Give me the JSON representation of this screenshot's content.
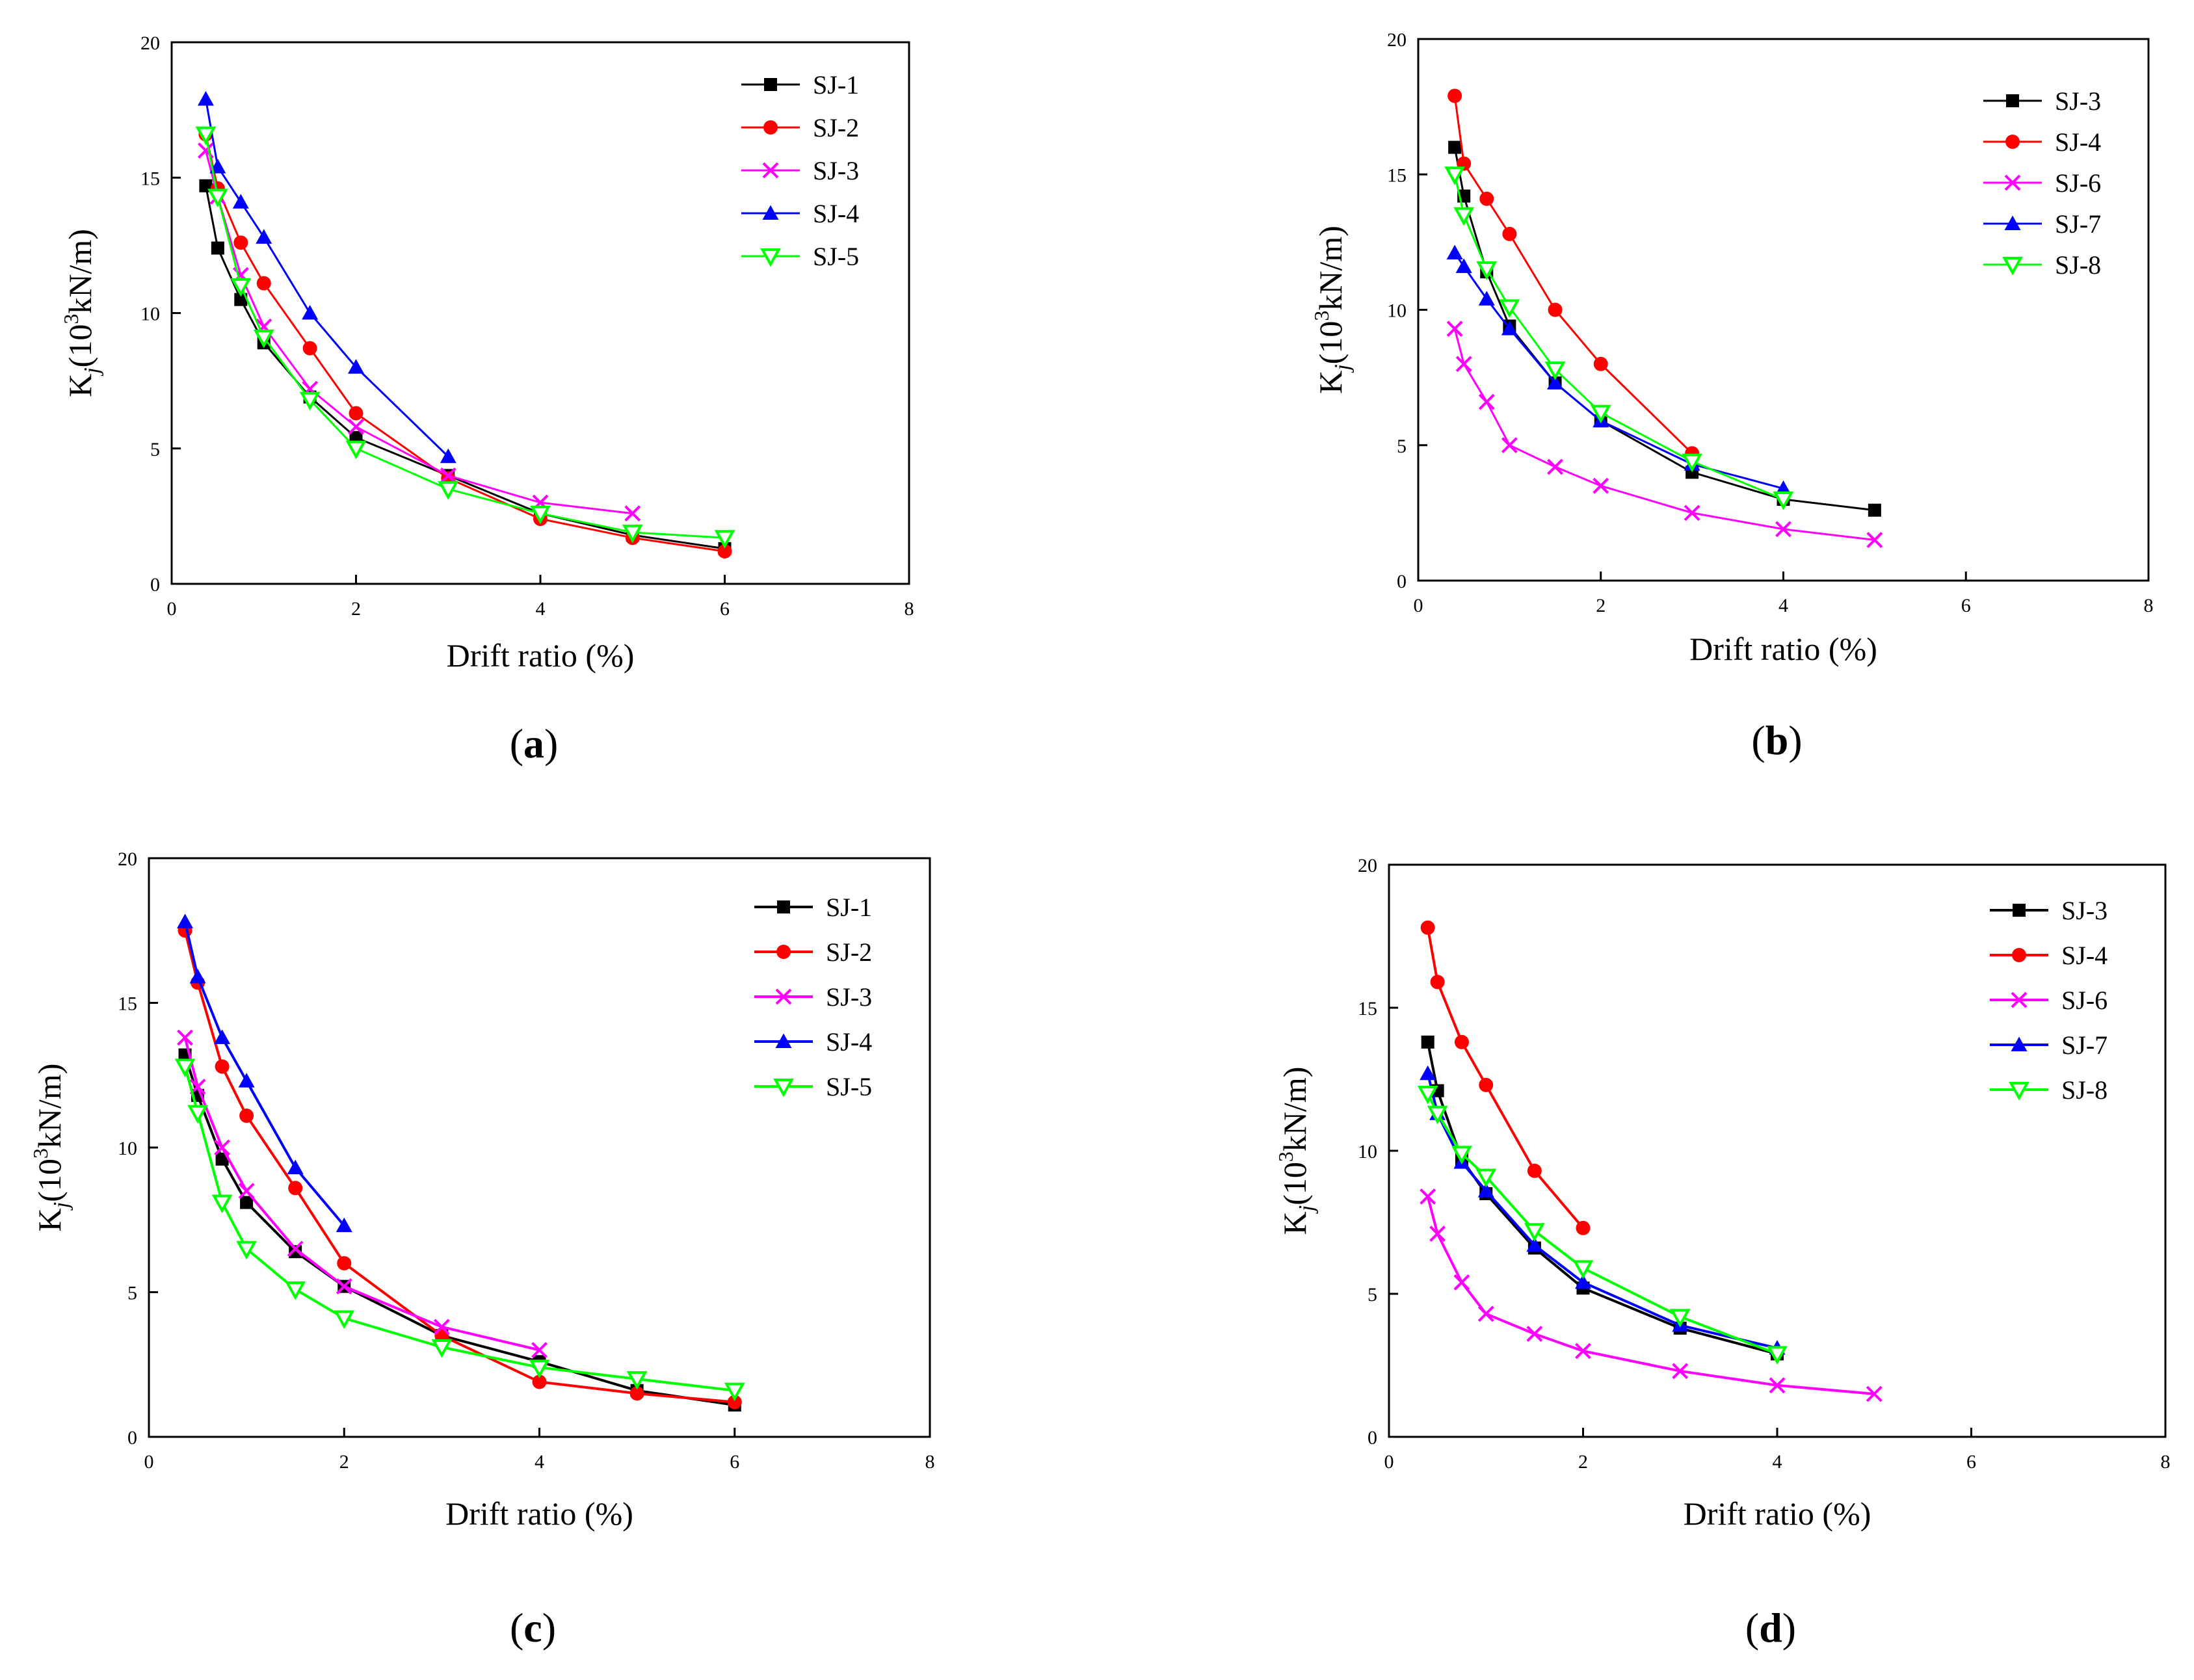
{
  "figure": {
    "title": ""
  },
  "chart_data": [
    {
      "type": "line",
      "panel_label": "(a)",
      "panel_letter": "a",
      "xlabel": "Drift ratio (%)",
      "ylabel_main": "K",
      "ylabel_sub": "j",
      "ylabel_pre": "(10",
      "ylabel_sup": "3",
      "ylabel_post": "kN/m)",
      "xlim": [
        0,
        8
      ],
      "ylim": [
        0,
        20
      ],
      "xticks": [
        0,
        2,
        4,
        6,
        8
      ],
      "yticks": [
        0,
        5,
        10,
        15,
        20
      ],
      "grid": false,
      "legend_position": "top-right",
      "series": [
        {
          "name": "SJ-1",
          "color": "#000000",
          "marker": "square",
          "x": [
            0.37,
            0.5,
            0.75,
            1,
            1.5,
            2,
            3,
            4,
            5,
            6
          ],
          "y": [
            14.7,
            12.4,
            10.5,
            8.9,
            6.9,
            5.4,
            4.0,
            2.6,
            1.8,
            1.3
          ]
        },
        {
          "name": "SJ-2",
          "color": "#ff0000",
          "marker": "circle",
          "x": [
            0.37,
            0.5,
            0.75,
            1,
            1.5,
            2,
            3,
            4,
            5,
            6
          ],
          "y": [
            16.6,
            14.6,
            12.6,
            11.1,
            8.7,
            6.3,
            3.9,
            2.4,
            1.7,
            1.2
          ]
        },
        {
          "name": "SJ-3",
          "color": "#ff00ff",
          "marker": "x",
          "x": [
            0.37,
            0.5,
            0.75,
            1,
            1.5,
            2,
            3,
            4,
            5
          ],
          "y": [
            16.0,
            14.3,
            11.4,
            9.5,
            7.2,
            5.8,
            4.0,
            3.0,
            2.6
          ]
        },
        {
          "name": "SJ-4",
          "color": "#0000ff",
          "marker": "triangle-up",
          "x": [
            0.37,
            0.5,
            0.75,
            1,
            1.5,
            2,
            3
          ],
          "y": [
            17.9,
            15.4,
            14.1,
            12.8,
            10.0,
            8.0,
            4.7
          ]
        },
        {
          "name": "SJ-5",
          "color": "#00ff00",
          "marker": "triangle-down",
          "x": [
            0.37,
            0.5,
            0.75,
            1,
            1.5,
            2,
            3,
            4,
            5,
            6
          ],
          "y": [
            16.6,
            14.3,
            11.0,
            9.1,
            6.8,
            5.0,
            3.5,
            2.6,
            1.9,
            1.7
          ]
        }
      ]
    },
    {
      "type": "line",
      "panel_label": "(b)",
      "panel_letter": "b",
      "xlabel": "Drift ratio (%)",
      "ylabel_main": "K",
      "ylabel_sub": "j",
      "ylabel_pre": "(10",
      "ylabel_sup": "3",
      "ylabel_post": "kN/m)",
      "xlim": [
        0,
        8
      ],
      "ylim": [
        0,
        20
      ],
      "xticks": [
        0,
        2,
        4,
        6,
        8
      ],
      "yticks": [
        0,
        5,
        10,
        15,
        20
      ],
      "grid": false,
      "legend_position": "top-right",
      "series": [
        {
          "name": "SJ-3",
          "color": "#000000",
          "marker": "square",
          "x": [
            0.4,
            0.5,
            0.75,
            1,
            1.5,
            2,
            3,
            4,
            5
          ],
          "y": [
            16.0,
            14.2,
            11.4,
            9.4,
            7.3,
            5.9,
            4.0,
            3.0,
            2.6
          ]
        },
        {
          "name": "SJ-4",
          "color": "#ff0000",
          "marker": "circle",
          "x": [
            0.4,
            0.5,
            0.75,
            1,
            1.5,
            2,
            3
          ],
          "y": [
            17.9,
            15.4,
            14.1,
            12.8,
            10.0,
            8.0,
            4.7
          ]
        },
        {
          "name": "SJ-6",
          "color": "#ff00ff",
          "marker": "x",
          "x": [
            0.4,
            0.5,
            0.75,
            1,
            1.5,
            2,
            3,
            4,
            5
          ],
          "y": [
            9.3,
            8.0,
            6.6,
            5.0,
            4.2,
            3.5,
            2.5,
            1.9,
            1.5
          ]
        },
        {
          "name": "SJ-7",
          "color": "#0000ff",
          "marker": "triangle-up",
          "x": [
            0.4,
            0.5,
            0.75,
            1,
            1.5,
            2,
            3,
            4
          ],
          "y": [
            12.1,
            11.6,
            10.4,
            9.3,
            7.3,
            5.9,
            4.3,
            3.4
          ]
        },
        {
          "name": "SJ-8",
          "color": "#00ff00",
          "marker": "triangle-down",
          "x": [
            0.4,
            0.5,
            0.75,
            1,
            1.5,
            2,
            3,
            4
          ],
          "y": [
            15.0,
            13.5,
            11.5,
            10.1,
            7.8,
            6.2,
            4.4,
            3.0
          ]
        }
      ]
    },
    {
      "type": "line",
      "panel_label": "(c)",
      "panel_letter": "c",
      "xlabel": "Drift ratio (%)",
      "ylabel_main": "K",
      "ylabel_sub": "j",
      "ylabel_pre": "(10",
      "ylabel_sup": "3",
      "ylabel_post": "kN/m)",
      "xlim": [
        0,
        8
      ],
      "ylim": [
        0,
        20
      ],
      "xticks": [
        0,
        2,
        4,
        6,
        8
      ],
      "yticks": [
        0,
        5,
        10,
        15,
        20
      ],
      "grid": false,
      "legend_position": "top-right",
      "series": [
        {
          "name": "SJ-1",
          "color": "#000000",
          "marker": "square",
          "x": [
            0.37,
            0.5,
            0.75,
            1,
            1.5,
            2,
            3,
            4,
            5,
            6
          ],
          "y": [
            13.2,
            11.8,
            9.6,
            8.1,
            6.4,
            5.2,
            3.5,
            2.6,
            1.6,
            1.1
          ]
        },
        {
          "name": "SJ-2",
          "color": "#ff0000",
          "marker": "circle",
          "x": [
            0.37,
            0.5,
            0.75,
            1,
            1.5,
            2,
            3,
            4,
            5,
            6
          ],
          "y": [
            17.5,
            15.7,
            12.8,
            11.1,
            8.6,
            6.0,
            3.5,
            1.9,
            1.5,
            1.2
          ]
        },
        {
          "name": "SJ-3",
          "color": "#ff00ff",
          "marker": "x",
          "x": [
            0.37,
            0.5,
            0.75,
            1,
            1.5,
            2,
            3,
            4
          ],
          "y": [
            13.8,
            12.1,
            10.0,
            8.5,
            6.5,
            5.2,
            3.8,
            3.0
          ]
        },
        {
          "name": "SJ-4",
          "color": "#0000ff",
          "marker": "triangle-up",
          "x": [
            0.37,
            0.5,
            0.75,
            1,
            1.5,
            2
          ],
          "y": [
            17.8,
            15.9,
            13.8,
            12.3,
            9.3,
            7.3
          ]
        },
        {
          "name": "SJ-5",
          "color": "#00ff00",
          "marker": "triangle-down",
          "x": [
            0.37,
            0.5,
            0.75,
            1,
            1.5,
            2,
            3,
            4,
            5,
            6
          ],
          "y": [
            12.8,
            11.2,
            8.1,
            6.5,
            5.1,
            4.1,
            3.1,
            2.4,
            2.0,
            1.6
          ]
        }
      ]
    },
    {
      "type": "line",
      "panel_label": "(d)",
      "panel_letter": "d",
      "xlabel": "Drift ratio (%)",
      "ylabel_main": "K",
      "ylabel_sub": "j",
      "ylabel_pre": "(10",
      "ylabel_sup": "3",
      "ylabel_post": "kN/m)",
      "xlim": [
        0,
        8
      ],
      "ylim": [
        0,
        20
      ],
      "xticks": [
        0,
        2,
        4,
        6,
        8
      ],
      "yticks": [
        0,
        5,
        10,
        15,
        20
      ],
      "grid": false,
      "legend_position": "top-right",
      "series": [
        {
          "name": "SJ-3",
          "color": "#000000",
          "marker": "square",
          "x": [
            0.4,
            0.5,
            0.75,
            1,
            1.5,
            2,
            3,
            4
          ],
          "y": [
            13.8,
            12.1,
            9.7,
            8.5,
            6.6,
            5.2,
            3.8,
            2.9
          ]
        },
        {
          "name": "SJ-4",
          "color": "#ff0000",
          "marker": "circle",
          "x": [
            0.4,
            0.5,
            0.75,
            1,
            1.5,
            2
          ],
          "y": [
            17.8,
            15.9,
            13.8,
            12.3,
            9.3,
            7.3
          ]
        },
        {
          "name": "SJ-6",
          "color": "#ff00ff",
          "marker": "x",
          "x": [
            0.4,
            0.5,
            0.75,
            1,
            1.5,
            2,
            3,
            4,
            5
          ],
          "y": [
            8.4,
            7.1,
            5.4,
            4.3,
            3.6,
            3.0,
            2.3,
            1.8,
            1.5
          ]
        },
        {
          "name": "SJ-7",
          "color": "#0000ff",
          "marker": "triangle-up",
          "x": [
            0.4,
            0.5,
            0.75,
            1,
            1.5,
            2,
            3,
            4
          ],
          "y": [
            12.7,
            11.3,
            9.6,
            8.6,
            6.7,
            5.4,
            3.9,
            3.1
          ]
        },
        {
          "name": "SJ-8",
          "color": "#00ff00",
          "marker": "triangle-down",
          "x": [
            0.4,
            0.5,
            0.75,
            1,
            1.5,
            2,
            3,
            4
          ],
          "y": [
            12.0,
            11.3,
            9.9,
            9.1,
            7.2,
            5.9,
            4.2,
            2.9
          ]
        }
      ]
    }
  ]
}
